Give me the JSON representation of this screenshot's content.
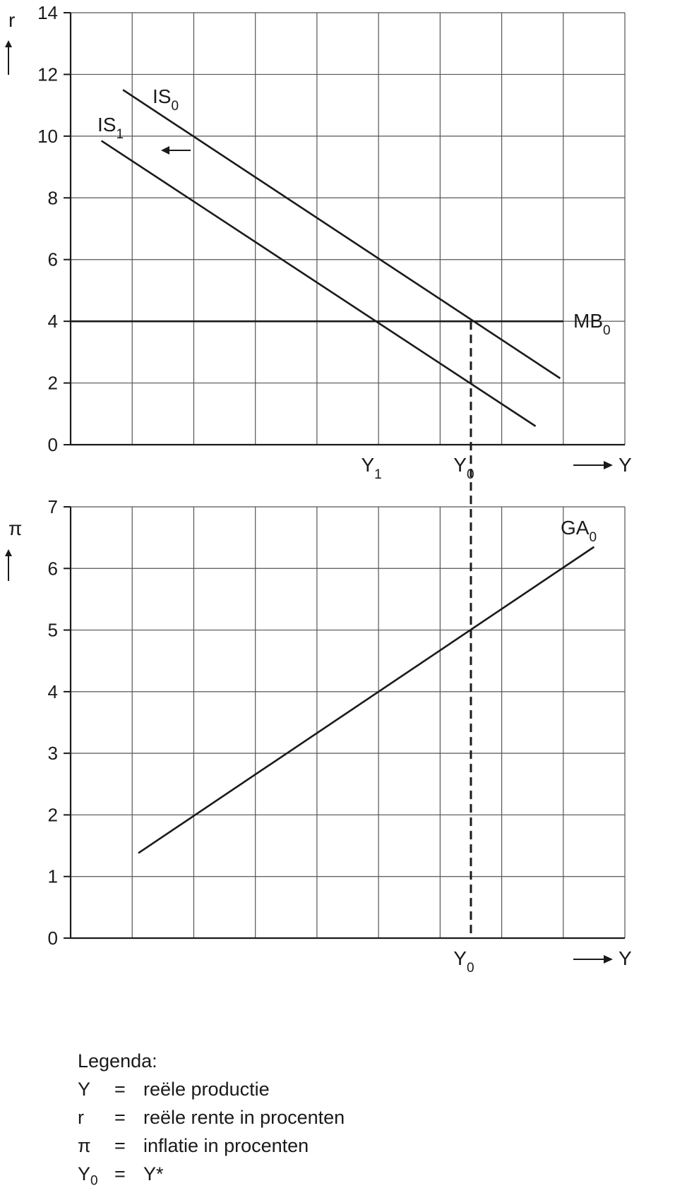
{
  "chart_data": [
    {
      "type": "line",
      "ylabel": "r",
      "xlabel": "Y",
      "ylim": [
        0,
        14
      ],
      "yticks": [
        "0",
        "2",
        "4",
        "6",
        "8",
        "10",
        "12",
        "14"
      ],
      "x_grid_columns": 9,
      "x_markers": [
        {
          "base": "Y",
          "sub": "1",
          "x": 5
        },
        {
          "base": "Y",
          "sub": "0",
          "x": 6.5
        }
      ],
      "series": [
        {
          "name": "IS",
          "sub": "0",
          "points": [
            [
              0.85,
              11.5
            ],
            [
              7.95,
              2.15
            ]
          ]
        },
        {
          "name": "IS",
          "sub": "1",
          "points": [
            [
              0.5,
              9.85
            ],
            [
              7.55,
              0.6
            ]
          ]
        },
        {
          "name": "MB",
          "sub": "0",
          "points": [
            [
              0.0,
              4.0
            ],
            [
              8.0,
              4.0
            ]
          ]
        }
      ],
      "annotations": [
        {
          "type": "arrow",
          "text": "←",
          "direction": "left",
          "between": [
            "IS0",
            "IS1"
          ]
        }
      ],
      "grid": true
    },
    {
      "type": "line",
      "ylabel": "π",
      "xlabel": "Y",
      "ylim": [
        0,
        7
      ],
      "yticks": [
        "0",
        "1",
        "2",
        "3",
        "4",
        "5",
        "6",
        "7"
      ],
      "x_grid_columns": 9,
      "x_markers": [
        {
          "base": "Y",
          "sub": "0",
          "x": 6.5
        }
      ],
      "series": [
        {
          "name": "GA",
          "sub": "0",
          "points": [
            [
              1.1,
              1.38
            ],
            [
              8.5,
              6.35
            ]
          ]
        }
      ],
      "grid": true
    }
  ],
  "connector": {
    "style": "dashed",
    "from": "Y0 (upper panel, r = 4)",
    "to": "Y0 (lower panel axis)"
  },
  "legend": {
    "title": "Legenda:",
    "rows": [
      {
        "sym": "Y",
        "sym_sub": "",
        "eq": "=",
        "desc": "reële productie"
      },
      {
        "sym": "r",
        "sym_sub": "",
        "eq": "=",
        "desc": "reële rente in procenten"
      },
      {
        "sym": "π",
        "sym_sub": "",
        "eq": "=",
        "desc": "inflatie in procenten"
      },
      {
        "sym": "Y",
        "sym_sub": "0",
        "eq": "=",
        "desc": "Y*"
      }
    ]
  },
  "colors": {
    "line": "#1a1a1a",
    "grid": "#555555",
    "background": "#ffffff"
  }
}
